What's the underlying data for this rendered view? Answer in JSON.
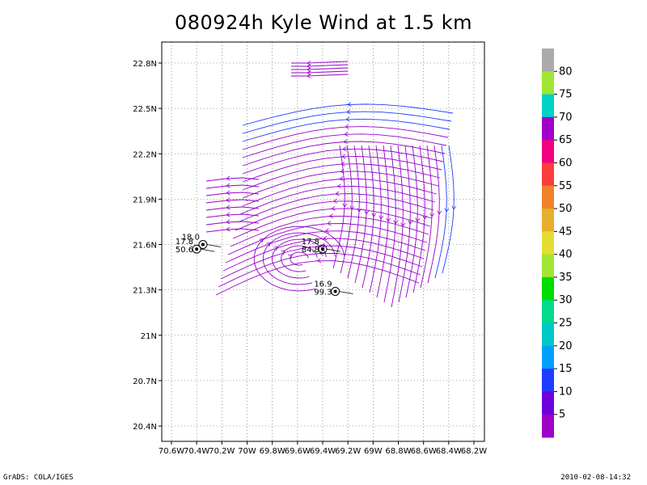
{
  "chart_data": {
    "type": "vector",
    "title": "080924h Kyle Wind at 1.5 km",
    "xlabel": "",
    "ylabel": "",
    "xlim": [
      -70.6,
      -68.2
    ],
    "ylim": [
      20.3,
      22.85
    ],
    "x_ticks": [
      -70.6,
      -70.4,
      -70.2,
      -70.0,
      -69.8,
      -69.6,
      -69.4,
      -69.2,
      -69.0,
      -68.8,
      -68.6,
      -68.4,
      -68.2
    ],
    "x_tick_labels": [
      "70.6W",
      "70.4W",
      "70.2W",
      "70W",
      "69.8W",
      "69.6W",
      "69.4W",
      "69.2W",
      "69W",
      "68.8W",
      "68.6W",
      "68.4W",
      "68.2W"
    ],
    "y_ticks": [
      20.4,
      20.7,
      21.0,
      21.3,
      21.6,
      21.9,
      22.2,
      22.5,
      22.8
    ],
    "y_tick_labels": [
      "20.4N",
      "20.7N",
      "21N",
      "21.3N",
      "21.6N",
      "21.9N",
      "22.2N",
      "22.5N",
      "22.8N"
    ],
    "grid": true,
    "colorbar": {
      "levels": [
        "80",
        "75",
        "70",
        "65",
        "60",
        "55",
        "50",
        "45",
        "40",
        "35",
        "30",
        "25",
        "20",
        "15",
        "10",
        "5"
      ],
      "colors": [
        "#aaaaaa",
        "#a0e632",
        "#00d2c8",
        "#a000c8",
        "#f00082",
        "#fa3c3c",
        "#f08228",
        "#e6af2d",
        "#e6dc32",
        "#a0e632",
        "#00dc00",
        "#00dc8c",
        "#00c8c8",
        "#00a0ff",
        "#1e3cff",
        "#6e00dc",
        "#a000c8"
      ]
    },
    "storm_markers": [
      {
        "lon": -70.4,
        "lat": 21.57,
        "labels": [
          "17.8",
          "50.6"
        ]
      },
      {
        "lon": -70.35,
        "lat": 21.6,
        "labels": [
          "18.0"
        ]
      },
      {
        "lon": -69.4,
        "lat": 21.57,
        "labels": [
          "17.8",
          "84.8"
        ]
      },
      {
        "lon": -69.3,
        "lat": 21.29,
        "labels": [
          "16.9",
          "99.3"
        ]
      }
    ],
    "streamline_color_main": "#9600c8",
    "streamline_color_fast": "#1e3cff"
  },
  "footer": {
    "left": "GrADS: COLA/IGES",
    "right": "2010-02-08-14:32"
  },
  "colors": {
    "grid": "#555555",
    "frame": "#000000"
  }
}
